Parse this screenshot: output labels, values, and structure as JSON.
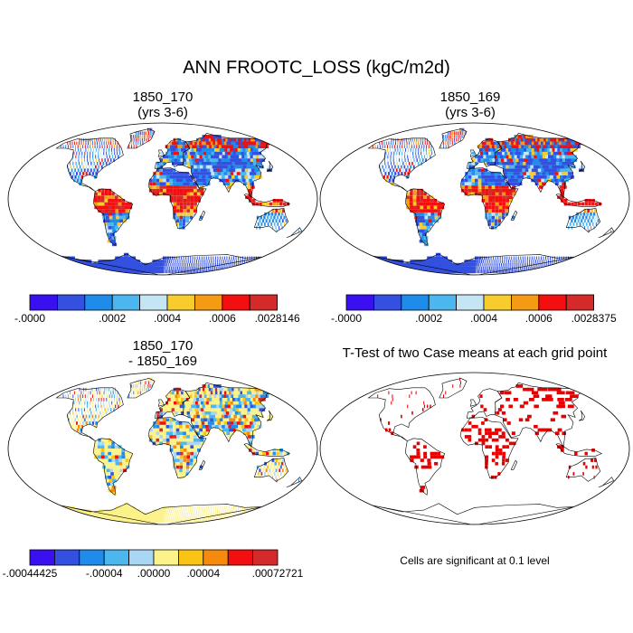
{
  "main_title": "ANN FROOTC_LOSS (kgC/m2d)",
  "colors": {
    "land_outline": "#000000",
    "ocean": "#ffffff",
    "significant": "#e60000",
    "scale_abs": [
      "#3a10f0",
      "#3350e0",
      "#1f8bea",
      "#4cb6ee",
      "#c6e5f4",
      "#f7cc2c",
      "#f59b13",
      "#f30f0f",
      "#d42a2a"
    ],
    "scale_diff": [
      "#3a10f0",
      "#3350e0",
      "#1f8bea",
      "#4cb6ee",
      "#a9d6f2",
      "#fcf28a",
      "#f9c414",
      "#f58a0d",
      "#f30f0f",
      "#d42a2a"
    ]
  },
  "panels": [
    {
      "id": "p1",
      "title_line1": "1850_170",
      "title_line2": "(yrs 3-6)",
      "ticks": [
        "-.0000",
        ".0002",
        ".0004",
        ".0006",
        ".0028146"
      ]
    },
    {
      "id": "p2",
      "title_line1": "1850_169",
      "title_line2": "(yrs 3-6)",
      "ticks": [
        "-.0000",
        ".0002",
        ".0004",
        ".0006",
        ".0028375"
      ]
    },
    {
      "id": "p3",
      "title_line1": "1850_170",
      "title_line2": "- 1850_169",
      "ticks": [
        "-.00044425",
        "-.00004",
        ".00000",
        ".00004",
        ".00072721"
      ]
    },
    {
      "id": "p4",
      "title_line1": "T-Test of two Case means at each grid point",
      "note": "Cells are significant at 0.1 level"
    }
  ]
}
